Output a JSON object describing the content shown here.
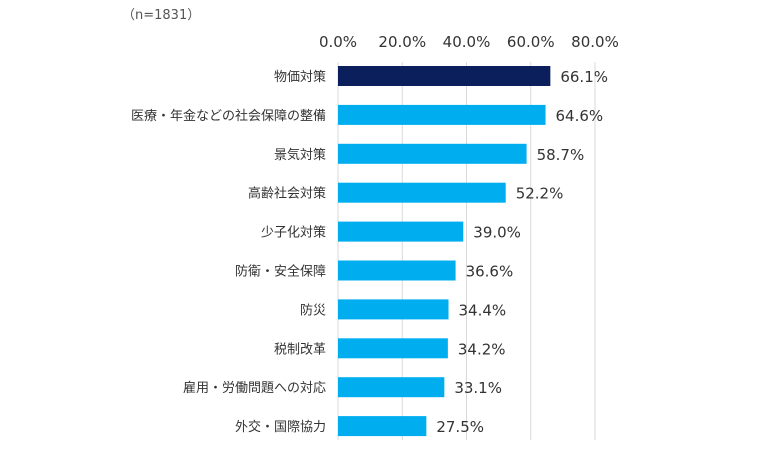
{
  "note": "（n=1831）",
  "chart_data": {
    "type": "bar",
    "orientation": "horizontal",
    "categories": [
      "物価対策",
      "医療・年金などの社会保障の整備",
      "景気対策",
      "高齢社会対策",
      "少子化対策",
      "防衛・安全保障",
      "防災",
      "税制改革",
      "雇用・労働問題への対応",
      "外交・国際協力"
    ],
    "values": [
      66.1,
      64.6,
      58.7,
      52.2,
      39.0,
      36.6,
      34.4,
      34.2,
      33.1,
      27.5
    ],
    "value_labels": [
      "66.1%",
      "64.6%",
      "58.7%",
      "52.2%",
      "39.0%",
      "36.6%",
      "34.4%",
      "34.2%",
      "33.1%",
      "27.5%"
    ],
    "xlim": [
      0,
      80
    ],
    "ticks": [
      0,
      20,
      40,
      60,
      80
    ],
    "tick_labels": [
      "0.0%",
      "20.0%",
      "40.0%",
      "60.0%",
      "80.0%"
    ],
    "grid": true,
    "tick_position": "top",
    "colors": {
      "highlight": "#0b1f5c",
      "bar": "#00aeef",
      "grid": "#d9d9d9"
    },
    "highlight_index": 0
  }
}
